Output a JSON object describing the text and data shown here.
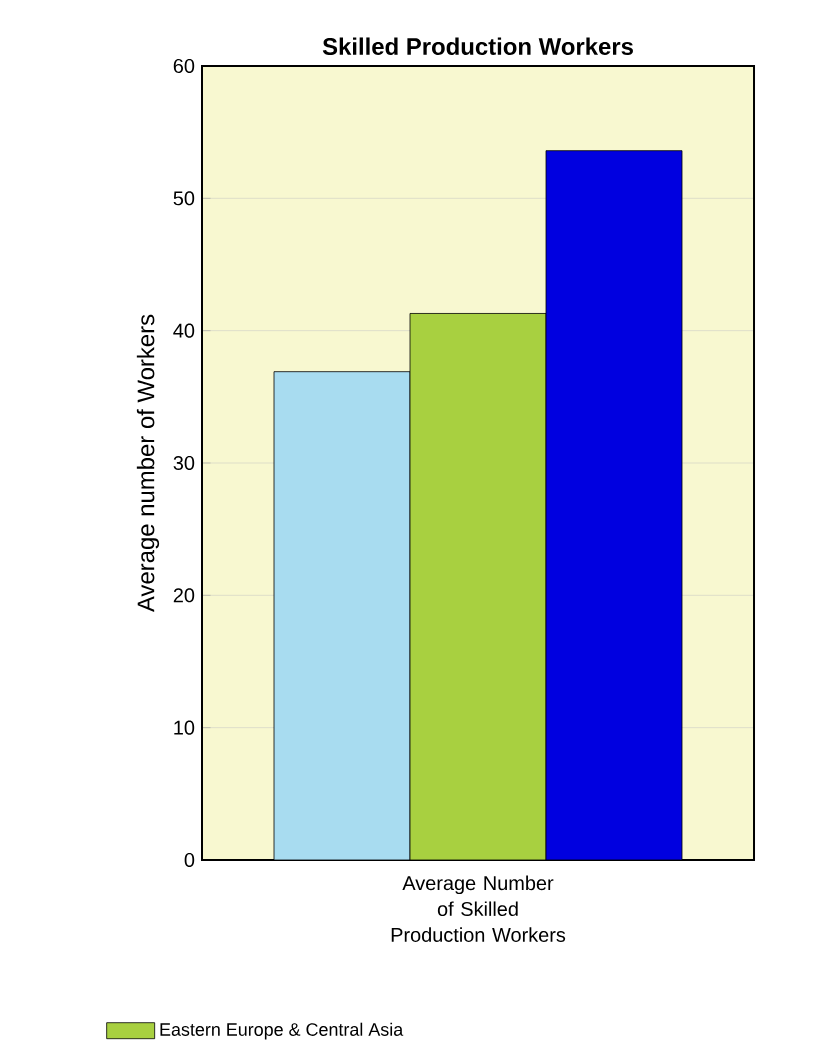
{
  "chart_data": {
    "type": "bar",
    "title": "Skilled Production Workers",
    "ylabel": "Average number of Workers",
    "categories": [
      "Average Number of Skilled Production Workers"
    ],
    "series": [
      {
        "color": "#a8dcf0",
        "values": [
          36.9
        ]
      },
      {
        "name": "Eastern Europe & Central Asia",
        "color": "#a8d040",
        "values": [
          41.3
        ]
      },
      {
        "color": "#0000e0",
        "values": [
          53.6
        ]
      }
    ],
    "ylim": [
      0,
      60
    ],
    "yticks": [
      0,
      10,
      20,
      30,
      40,
      50,
      60
    ],
    "grid": "y",
    "legend": "bottom"
  }
}
